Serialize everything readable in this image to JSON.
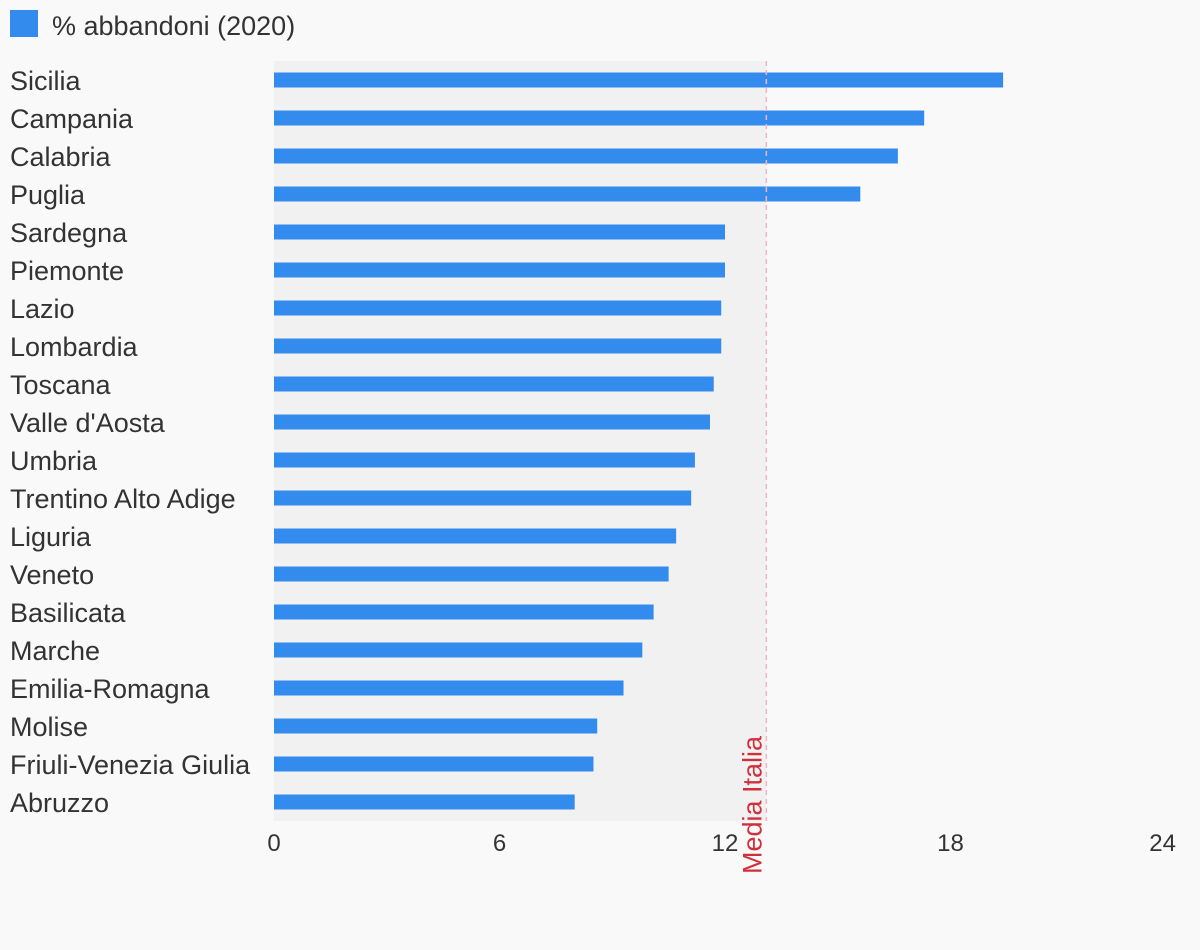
{
  "chart_data": {
    "type": "bar",
    "orientation": "horizontal",
    "legend": [
      {
        "label": "% abbandoni (2020)",
        "color": "#338bee"
      }
    ],
    "legend_position": "top-left",
    "series": [
      {
        "name": "% abbandoni (2020)",
        "color": "#338bee",
        "categories": [
          "Sicilia",
          "Campania",
          "Calabria",
          "Puglia",
          "Sardegna",
          "Piemonte",
          "Lazio",
          "Lombardia",
          "Toscana",
          "Valle d'Aosta",
          "Umbria",
          "Trentino Alto Adige",
          "Liguria",
          "Veneto",
          "Basilicata",
          "Marche",
          "Emilia-Romagna",
          "Molise",
          "Friuli-Venezia Giulia",
          "Abruzzo"
        ],
        "values": [
          19.4,
          17.3,
          16.6,
          15.6,
          12.0,
          12.0,
          11.9,
          11.9,
          11.7,
          11.6,
          11.2,
          11.1,
          10.7,
          10.5,
          10.1,
          9.8,
          9.3,
          8.6,
          8.5,
          8.0
        ]
      }
    ],
    "x_ticks": [
      "0",
      "6",
      "12",
      "18",
      "24"
    ],
    "xlim": [
      0,
      24
    ],
    "grid": false,
    "reference_line": {
      "value": 13.1,
      "label": "Media Italia",
      "color": "#d0303a"
    },
    "shaded_region": {
      "from": 0,
      "to": 13.1,
      "color": "#f1f1f2"
    }
  }
}
